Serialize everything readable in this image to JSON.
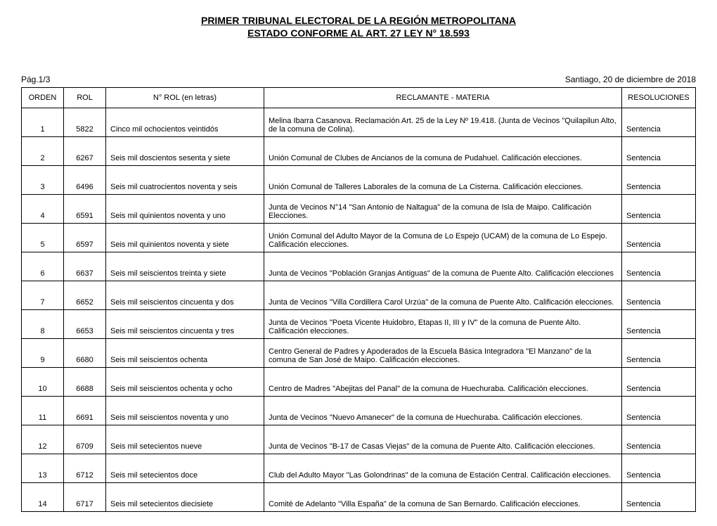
{
  "title_line1": "PRIMER TRIBUNAL ELECTORAL DE LA REGIÓN METROPOLITANA",
  "title_line2": "ESTADO CONFORME AL ART. 27 LEY N° 18.593",
  "page_label": "Pág.1/3",
  "date_label": "Santiago, 20 de diciembre de 2018",
  "headers": {
    "orden": "ORDEN",
    "rol": "ROL",
    "rol_letras": "N° ROL (en letras)",
    "materia": "RECLAMANTE - MATERIA",
    "resoluciones": "RESOLUCIONES"
  },
  "rows": [
    {
      "orden": "1",
      "rol": "5822",
      "letras": "Cinco mil ochocientos veintidós",
      "materia": "Melina Ibarra Casanova.  Reclamación Art. 25 de la Ley Nº 19.418.  (Junta de Vecinos \"Quilapilun Alto, de la comuna de Colina).",
      "res": "Sentencia"
    },
    {
      "orden": "2",
      "rol": "6267",
      "letras": "Seis mil doscientos sesenta y siete",
      "materia": "Unión Comunal de Clubes de Ancianos de la comuna de Pudahuel. Calificación elecciones.",
      "res": "Sentencia"
    },
    {
      "orden": "3",
      "rol": "6496",
      "letras": "Seis mil cuatrocientos noventa y seis",
      "materia": "Unión Comunal de Talleres Laborales de la comuna de La Cisterna. Calificación elecciones.",
      "res": "Sentencia"
    },
    {
      "orden": "4",
      "rol": "6591",
      "letras": "Seis mil quinientos noventa y uno",
      "materia": "Junta de Vecinos N°14 \"San Antonio de Naltagua\" de la comuna de Isla de Maipo. Calificación Elecciones.",
      "res": "Sentencia"
    },
    {
      "orden": "5",
      "rol": "6597",
      "letras": "Seis mil quinientos noventa y siete",
      "materia": "Unión Comunal del Adulto Mayor de la Comuna de Lo Espejo (UCAM) de la comuna de Lo Espejo. Calificación elecciones.",
      "res": "Sentencia"
    },
    {
      "orden": "6",
      "rol": "6637",
      "letras": "Seis mil seiscientos treinta y siete",
      "materia": "Junta de Vecinos \"Población Granjas Antiguas\" de la comuna de Puente Alto. Calificación elecciones",
      "res": "Sentencia"
    },
    {
      "orden": "7",
      "rol": "6652",
      "letras": "Seis mil seiscientos cincuenta y dos",
      "materia": "Junta de Vecinos \"Villa Cordillera Carol Urzúa\" de la comuna de Puente Alto. Calificación elecciones.",
      "res": "Sentencia"
    },
    {
      "orden": "8",
      "rol": "6653",
      "letras": "Seis mil seiscientos cincuenta y tres",
      "materia": "Junta de Vecinos \"Poeta Vicente Huidobro, Etapas II, III y IV\" de la comuna de Puente Alto. Calificación elecciones.",
      "res": "Sentencia"
    },
    {
      "orden": "9",
      "rol": "6680",
      "letras": "Seis mil seiscientos ochenta",
      "materia": "Centro General de Padres y Apoderados de la Escuela Básica Integradora \"El Manzano\" de la comuna de San José de Maipo. Calificación elecciones.",
      "res": "Sentencia"
    },
    {
      "orden": "10",
      "rol": "6688",
      "letras": "Seis mil seiscientos ochenta y ocho",
      "materia": "Centro de Madres \"Abejitas del Panal\" de la comuna de Huechuraba. Calificación elecciones.",
      "res": "Sentencia"
    },
    {
      "orden": "11",
      "rol": "6691",
      "letras": "Seis mil seiscientos noventa y uno",
      "materia": "Junta de Vecinos \"Nuevo Amanecer\" de la comuna de Huechuraba. Calificación elecciones.",
      "res": "Sentencia"
    },
    {
      "orden": "12",
      "rol": "6709",
      "letras": "Seis mil setecientos nueve",
      "materia": "Junta de Vecinos \"B-17 de Casas Viejas\" de la comuna de Puente Alto. Calificación elecciones.",
      "res": "Sentencia"
    },
    {
      "orden": "13",
      "rol": "6712",
      "letras": "Seis mil setecientos doce",
      "materia": "Club del Adulto Mayor \"Las Golondrinas\" de la comuna de Estación Central. Calificación elecciones.",
      "res": "Sentencia"
    },
    {
      "orden": "14",
      "rol": "6717",
      "letras": "Seis mil setecientos diecisiete",
      "materia": "Comité de Adelanto \"Villa España\" de la comuna de San Bernardo. Calificación elecciones.",
      "res": "Sentencia"
    }
  ]
}
